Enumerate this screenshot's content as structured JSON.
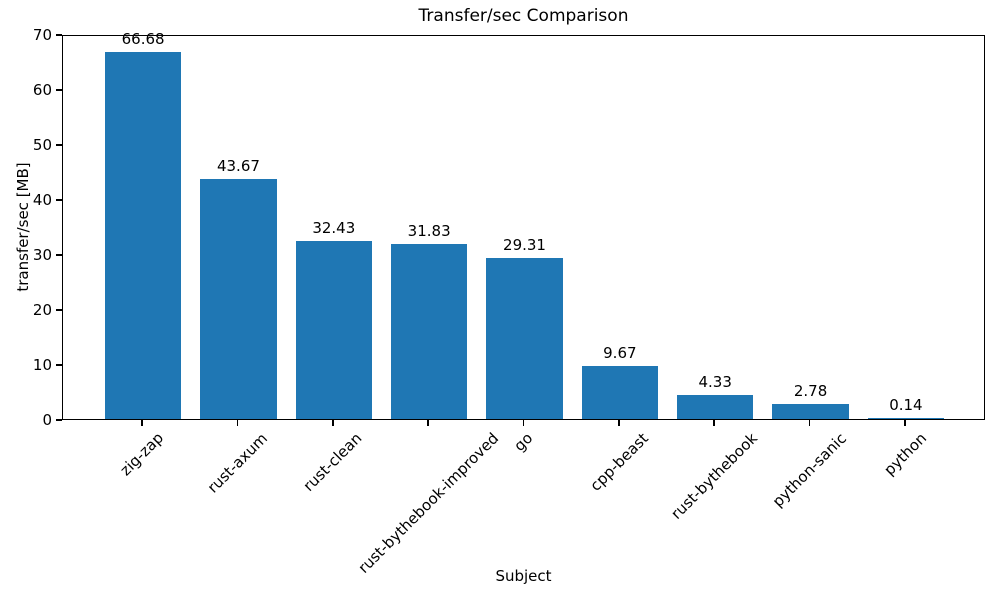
{
  "chart_data": {
    "type": "bar",
    "title": "Transfer/sec Comparison",
    "xlabel": "Subject",
    "ylabel": "transfer/sec [MB]",
    "categories": [
      "zig-zap",
      "rust-axum",
      "rust-clean",
      "rust-bythebook-improved",
      "go",
      "cpp-beast",
      "rust-bythebook",
      "python-sanic",
      "python"
    ],
    "values": [
      66.68,
      43.67,
      32.43,
      31.83,
      29.31,
      9.67,
      4.33,
      2.78,
      0.14
    ],
    "bar_labels": [
      "66.68",
      "43.67",
      "32.43",
      "31.83",
      "29.31",
      "9.67",
      "4.33",
      "2.78",
      "0.14"
    ],
    "ylim": [
      0,
      70
    ],
    "yticks": [
      0,
      10,
      20,
      30,
      40,
      50,
      60,
      70
    ],
    "bar_color": "#1f77b4",
    "bar_width_fraction": 0.8,
    "xtick_rotation_deg": 45,
    "grid": false,
    "legend_position": "none",
    "background_color": "#ffffff",
    "axis_color": "#000000"
  }
}
